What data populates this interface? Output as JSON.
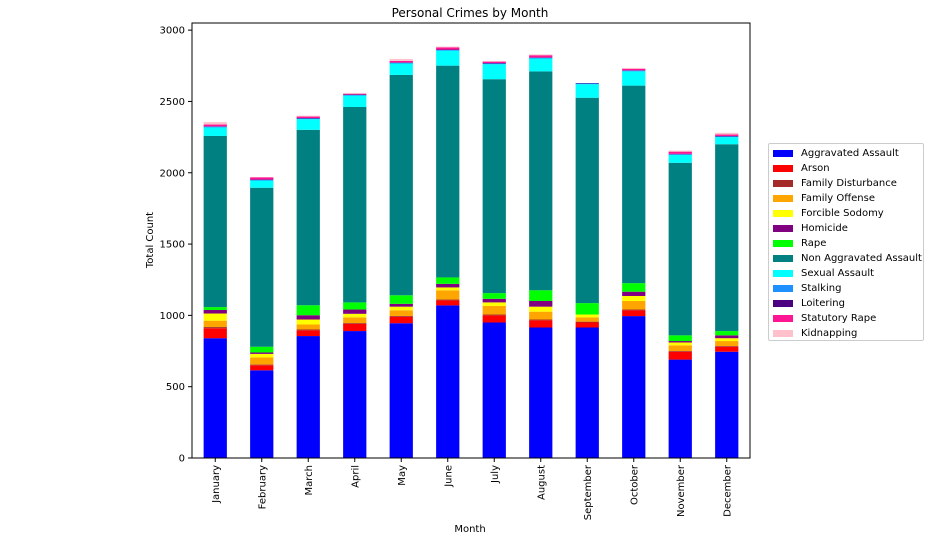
{
  "chart_data": {
    "type": "bar",
    "stacked": true,
    "title": "Personal Crimes by Month",
    "xlabel": "Month",
    "ylabel": "Total Count",
    "ylim": [
      0,
      3050
    ],
    "yticks": [
      0,
      500,
      1000,
      1500,
      2000,
      2500,
      3000
    ],
    "grid": false,
    "legend_position": "right",
    "categories": [
      "January",
      "February",
      "March",
      "April",
      "May",
      "June",
      "July",
      "August",
      "September",
      "October",
      "November",
      "December"
    ],
    "series": [
      {
        "name": "Aggravated Assault",
        "color": "#0000ff",
        "values": [
          840,
          615,
          855,
          890,
          945,
          1070,
          950,
          915,
          915,
          995,
          690,
          745
        ]
      },
      {
        "name": "Arson",
        "color": "#ff0000",
        "values": [
          70,
          35,
          40,
          50,
          45,
          35,
          50,
          50,
          35,
          40,
          55,
          35
        ]
      },
      {
        "name": "Family Disturbance",
        "color": "#a52a2a",
        "values": [
          8,
          5,
          6,
          6,
          6,
          6,
          6,
          6,
          6,
          6,
          5,
          5
        ]
      },
      {
        "name": "Family Offense",
        "color": "#ffa500",
        "values": [
          45,
          50,
          35,
          40,
          40,
          65,
          60,
          55,
          30,
          60,
          40,
          35
        ]
      },
      {
        "name": "Forcible Sodomy",
        "color": "#ffff00",
        "values": [
          50,
          25,
          35,
          25,
          25,
          20,
          25,
          35,
          20,
          35,
          20,
          20
        ]
      },
      {
        "name": "Homicide",
        "color": "#800080",
        "values": [
          25,
          10,
          30,
          30,
          20,
          25,
          25,
          40,
          0,
          30,
          10,
          20
        ]
      },
      {
        "name": "Rape",
        "color": "#00ff00",
        "values": [
          20,
          40,
          70,
          50,
          60,
          45,
          40,
          75,
          80,
          60,
          40,
          30
        ]
      },
      {
        "name": "Non Aggravated Assault",
        "color": "#008080",
        "values": [
          1200,
          1115,
          1230,
          1370,
          1545,
          1485,
          1500,
          1535,
          1440,
          1385,
          1210,
          1310
        ]
      },
      {
        "name": "Sexual Assault",
        "color": "#00ffff",
        "values": [
          60,
          50,
          75,
          80,
          80,
          105,
          105,
          90,
          95,
          100,
          55,
          50
        ]
      },
      {
        "name": "Stalking",
        "color": "#1e90ff",
        "values": [
          5,
          5,
          5,
          5,
          5,
          5,
          5,
          5,
          5,
          5,
          5,
          5
        ]
      },
      {
        "name": "Loitering",
        "color": "#4b0082",
        "values": [
          3,
          3,
          3,
          3,
          3,
          3,
          3,
          3,
          3,
          3,
          3,
          3
        ]
      },
      {
        "name": "Statutory Rape",
        "color": "#ff1493",
        "values": [
          12,
          15,
          10,
          5,
          10,
          15,
          10,
          15,
          0,
          10,
          15,
          10
        ]
      },
      {
        "name": "Kidnapping",
        "color": "#ffc0cb",
        "values": [
          17,
          2,
          6,
          6,
          14,
          6,
          5,
          6,
          0,
          6,
          7,
          12
        ]
      }
    ]
  }
}
